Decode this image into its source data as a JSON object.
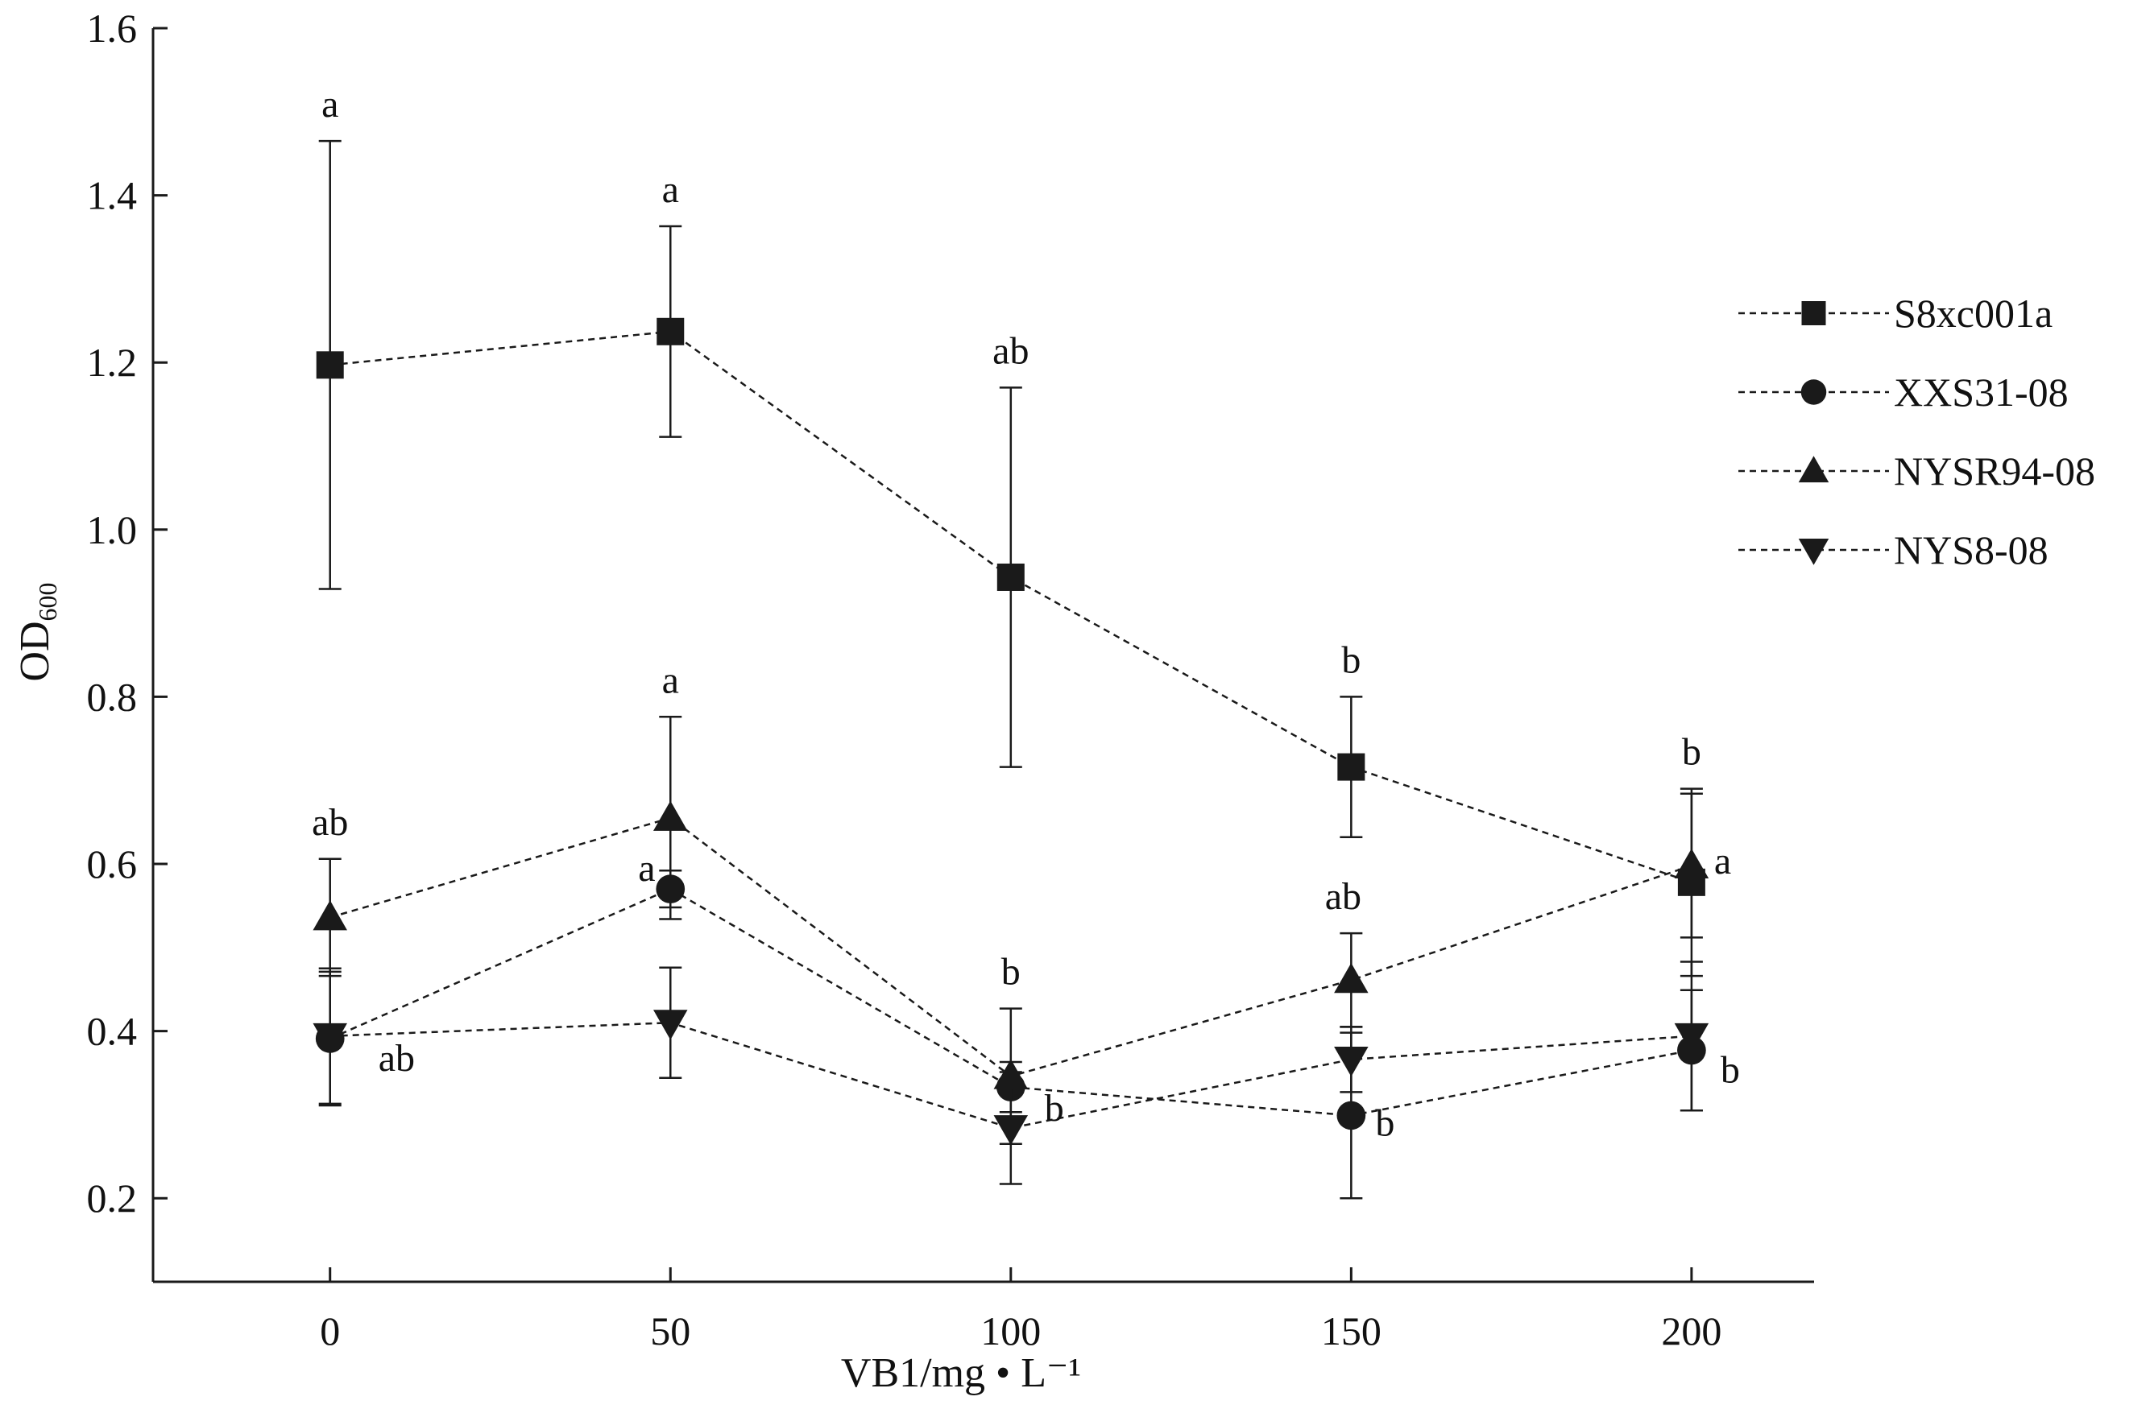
{
  "chart_data": {
    "type": "line",
    "xlabel": "VB1/mg • L⁻¹",
    "ylabel_main": "OD",
    "ylabel_sub": "600",
    "x": [
      0,
      50,
      100,
      150,
      200
    ],
    "x_ticks": [
      "0",
      "50",
      "100",
      "150",
      "200"
    ],
    "y_ticks": [
      "0.2",
      "0.4",
      "0.6",
      "0.8",
      "1.0",
      "1.2",
      "1.4",
      "1.6"
    ],
    "xlim": [
      -26,
      218
    ],
    "ylim": [
      0.1,
      1.6
    ],
    "grid": false,
    "legend_position": "right",
    "series": [
      {
        "name": "S8xc001a",
        "marker": "square",
        "y": [
          1.197,
          1.237,
          0.943,
          0.716,
          0.578
        ],
        "err": [
          0.268,
          0.126,
          0.227,
          0.084,
          0.112
        ],
        "labels": [
          "a",
          "a",
          "ab",
          "b",
          "b"
        ]
      },
      {
        "name": "XXS31-08",
        "marker": "circle",
        "y": [
          0.391,
          0.57,
          0.333,
          0.299,
          0.377
        ],
        "err": [
          0.08,
          0.022,
          0.03,
          0.099,
          0.072
        ],
        "labels": [
          "ab",
          "a",
          "b",
          "b",
          "b"
        ]
      },
      {
        "name": "NYSR94-08",
        "marker": "triangle-up",
        "y": [
          0.536,
          0.655,
          0.346,
          0.461,
          0.598
        ],
        "err": [
          0.07,
          0.121,
          0.081,
          0.056,
          0.086
        ],
        "labels": [
          "ab",
          "a",
          "b",
          "ab",
          "a"
        ]
      },
      {
        "name": "NYS8-08",
        "marker": "triangle-down",
        "y": [
          0.394,
          0.41,
          0.284,
          0.366,
          0.394
        ],
        "err": [
          0.081,
          0.066,
          0.067,
          0.039,
          0.089
        ],
        "labels": [
          "",
          "",
          "",
          "",
          ""
        ]
      }
    ]
  },
  "colors": {
    "ink": "#1a1a1a"
  }
}
